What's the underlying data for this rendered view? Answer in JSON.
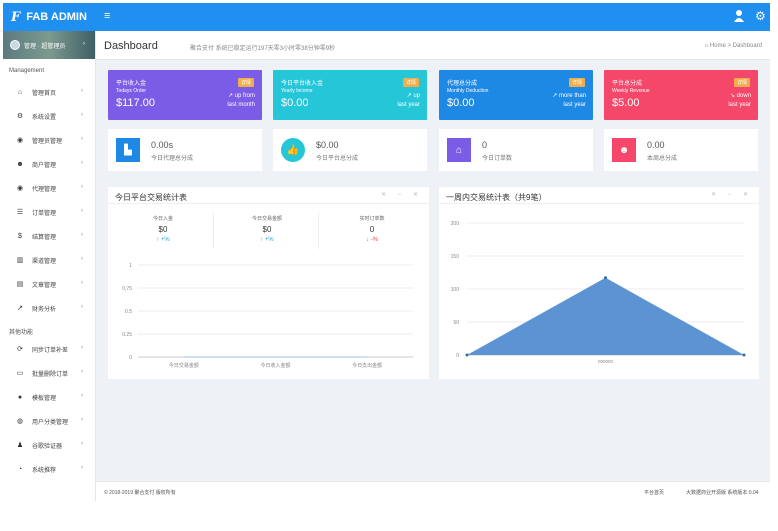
{
  "brand": {
    "logo": "F",
    "name": "FAB ADMIN",
    "menu_icon": "≡"
  },
  "sidebar": {
    "profile_name": "管理 · 超管理员",
    "section1": "Management",
    "section2": "其他功能",
    "items1": [
      {
        "icon": "home-icon",
        "glyph": "⌂",
        "label": "管理首页"
      },
      {
        "icon": "gears-icon",
        "glyph": "⚙",
        "label": "系统设置"
      },
      {
        "icon": "user-circle-icon",
        "glyph": "◉",
        "label": "管理员管理"
      },
      {
        "icon": "users-icon",
        "glyph": "☻",
        "label": "商户管理"
      },
      {
        "icon": "user-circle-icon",
        "glyph": "◉",
        "label": "代理管理"
      },
      {
        "icon": "list-icon",
        "glyph": "☰",
        "label": "订单管理"
      },
      {
        "icon": "money-icon",
        "glyph": "$",
        "label": "结算管理"
      },
      {
        "icon": "bank-icon",
        "glyph": "▥",
        "label": "渠道管理"
      },
      {
        "icon": "book-icon",
        "glyph": "▤",
        "label": "文章管理"
      },
      {
        "icon": "line-chart-icon",
        "glyph": "↗",
        "label": "财务分析"
      }
    ],
    "items2": [
      {
        "icon": "refresh-icon",
        "glyph": "⟳",
        "label": "同步订单补差"
      },
      {
        "icon": "layers-icon",
        "glyph": "▭",
        "label": "批量删除订单"
      },
      {
        "icon": "apple-icon",
        "glyph": "●",
        "label": "模板管理"
      },
      {
        "icon": "wechat-icon",
        "glyph": "◍",
        "label": "用户分类管理"
      },
      {
        "icon": "user-icon",
        "glyph": "♟",
        "label": "谷歌验证器"
      },
      {
        "icon": "dashboard-icon",
        "glyph": "◔",
        "label": "系统推荐"
      }
    ]
  },
  "header": {
    "title": "Dashboard",
    "subtitle": "聚合支付 系统已稳定运行197天零3小时零38分钟零9秒",
    "breadcrumb": "⌂ Home > Dashboard"
  },
  "stats": [
    {
      "title": "平台收入金",
      "subtitle": "Todays Order",
      "value": "$117.00",
      "badge": "详情",
      "trend1": "↗ up from",
      "trend2": "last month",
      "color": "#7b5ce6"
    },
    {
      "title": "今日平台收入金",
      "subtitle": "Yearly Income",
      "value": "$0.00",
      "badge": "详情",
      "trend1": "↗ up",
      "trend2": "last year",
      "color": "#26c6d9"
    },
    {
      "title": "代理总分成",
      "subtitle": "Monthly Deduction",
      "value": "$0.00",
      "badge": "详情",
      "trend1": "↗ more than",
      "trend2": "last year",
      "color": "#1e88e5"
    },
    {
      "title": "平台总分成",
      "subtitle": "Weekly Revenue",
      "value": "$5.00",
      "badge": "详情",
      "trend1": "↘ down",
      "trend2": "last year",
      "color": "#f5476a"
    }
  ],
  "infos": [
    {
      "icon": "bar-chart-icon",
      "glyph": "▙",
      "value": "0.00s",
      "label": "今日代理总分成",
      "color": "#1e88e5"
    },
    {
      "icon": "thumbs-up-icon",
      "glyph": "👍",
      "value": "$0.00",
      "label": "今日平台总分成",
      "color": "#26c6d9"
    },
    {
      "icon": "shopping-bag-icon",
      "glyph": "⌂",
      "value": "0",
      "label": "今日订单数",
      "color": "#7b5ce6"
    },
    {
      "icon": "users-icon",
      "glyph": "☻",
      "value": "0.00",
      "label": "本周总分成",
      "color": "#f5476a"
    }
  ],
  "panel_left": {
    "title": "今日平台交易统计表",
    "tools": "✕ − ✕",
    "kpis": [
      {
        "label": "今日入金",
        "value": "$0",
        "trend": "↑ +%"
      },
      {
        "label": "今日交易金额",
        "value": "$0",
        "trend": "↑ +%"
      },
      {
        "label": "实时订单数",
        "value": "0",
        "trend": "↓ -%"
      }
    ]
  },
  "panel_right": {
    "title": "一周内交易统计表（共9笔）",
    "tools": "✕ − ✕"
  },
  "chart_data": [
    {
      "type": "line",
      "title": "",
      "y_ticks": [
        "1",
        "0.75",
        "0.5",
        "0.25",
        "0"
      ],
      "ylim": [
        0,
        1
      ],
      "categories": [
        "今日交易金额",
        "今日收入金额",
        "今日支出金额"
      ],
      "series": [
        {
          "values": [
            0,
            0,
            0
          ]
        }
      ],
      "grid": true
    },
    {
      "type": "area",
      "title": "",
      "y_ticks": [
        "200",
        "150",
        "100",
        "50",
        "0"
      ],
      "ylim": [
        0,
        200
      ],
      "categories": [
        "",
        "000000",
        ""
      ],
      "series": [
        {
          "values": [
            0,
            117,
            0
          ]
        }
      ],
      "color": "#5b93d3",
      "grid": true
    }
  ],
  "footer": {
    "copyright": "© 2018-2019 聚合支付 版权所有",
    "link1": "平台首页",
    "link2": "大数据商业开源版 系统版本:0.04"
  }
}
